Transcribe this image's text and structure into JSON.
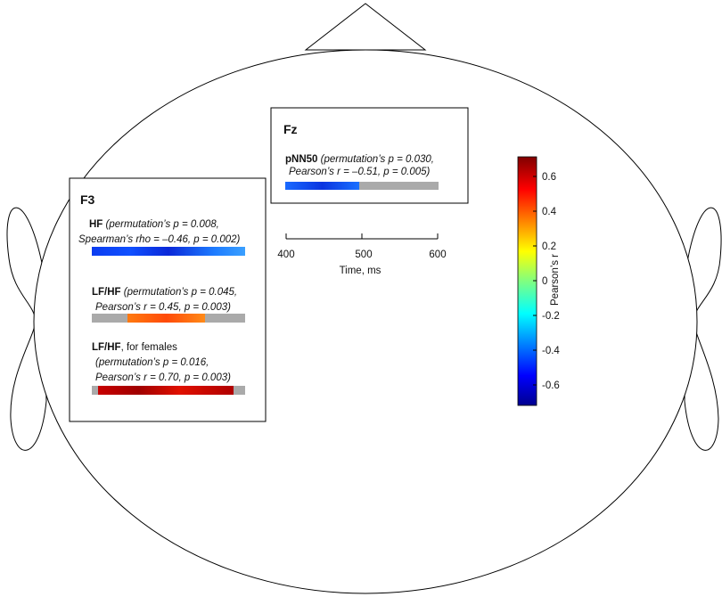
{
  "electrodes": [
    {
      "label": "Fz",
      "entries": [
        {
          "measure": "pNN50",
          "stats": [
            "(permutation’s p = 0.030,",
            "Pearson’s r = –0.51, p = 0.005)"
          ]
        }
      ]
    },
    {
      "label": "F3",
      "entries": [
        {
          "measure": "HF",
          "stats": [
            "(permutation’s p = 0.008,",
            "Spearman’s rho = –0.46, p = 0.002)"
          ]
        },
        {
          "measure": "LF/HF",
          "stats": [
            "(permutation’s p = 0.045,",
            "Pearson’s r = 0.45, p = 0.003)"
          ]
        },
        {
          "measure": "LF/HF",
          "note": ", for females",
          "stats": [
            "(permutation’s p = 0.016,",
            "Pearson’s r = 0.70, p = 0.003)"
          ]
        }
      ]
    }
  ],
  "time_axis": {
    "label": "Time, ms",
    "ticks": [
      "400",
      "500",
      "600"
    ]
  },
  "colorbar": {
    "label": "Pearson’s r",
    "ticks": [
      "0.6",
      "0.4",
      "0.2",
      "0",
      "-0.2",
      "-0.4",
      "-0.6"
    ]
  }
}
